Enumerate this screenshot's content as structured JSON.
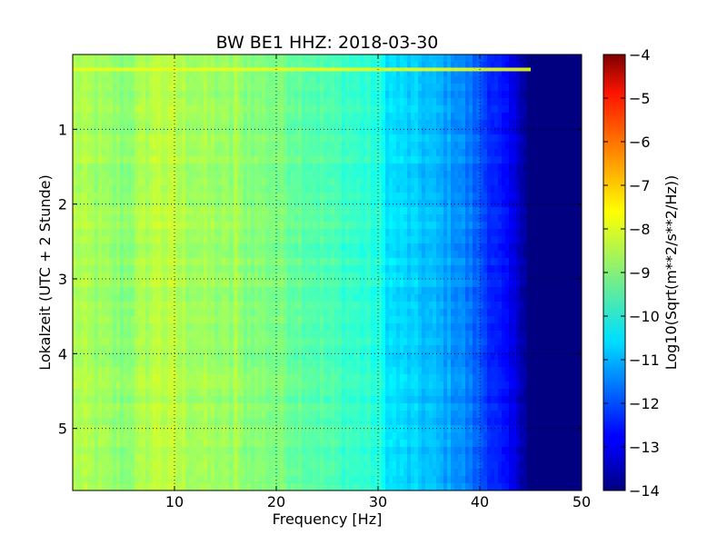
{
  "chart_data": {
    "type": "heatmap",
    "title": "BW BE1 HHZ: 2018-03-30",
    "xlabel": "Frequency [Hz]",
    "ylabel": "Lokalzeit (UTC + 2 Stunde)",
    "xlim": [
      0,
      50
    ],
    "ylim": [
      0,
      5.83
    ],
    "y_inverted": true,
    "x_ticks": [
      10,
      20,
      30,
      40,
      50
    ],
    "x_tick_labels": [
      "10",
      "20",
      "30",
      "40",
      "50"
    ],
    "y_ticks": [
      1,
      2,
      3,
      4,
      5
    ],
    "y_tick_labels": [
      "1",
      "2",
      "3",
      "4",
      "5"
    ],
    "grid": true,
    "colormap": "jet",
    "colorbar": {
      "label": "Log10(Sqrt(m**2/s**2/Hz))",
      "range": [
        -14,
        -4
      ],
      "ticks": [
        -4,
        -5,
        -6,
        -7,
        -8,
        -9,
        -10,
        -11,
        -12,
        -13,
        -14
      ],
      "tick_labels": [
        "−4",
        "−5",
        "−6",
        "−7",
        "−8",
        "−9",
        "−10",
        "−11",
        "−12",
        "−13",
        "−14"
      ]
    },
    "spectrum_profile": {
      "frequency_hz": [
        0,
        5,
        8,
        10,
        15,
        20,
        25,
        30,
        31,
        35,
        38,
        40,
        42,
        44,
        45,
        50
      ],
      "log10_amplitude": [
        -8.5,
        -8.9,
        -8.4,
        -8.5,
        -8.8,
        -9.0,
        -9.5,
        -9.9,
        -10.5,
        -10.9,
        -11.3,
        -11.9,
        -12.6,
        -13.3,
        -13.9,
        -14.0
      ]
    },
    "features": [
      {
        "type": "horizontal_band",
        "time_h": 0.2,
        "freq_range_hz": [
          0,
          45
        ],
        "log10_amplitude": -8.0
      },
      {
        "type": "vertical_band",
        "freq_hz": 8.5,
        "log10_amplitude": -8.0
      },
      {
        "type": "vertical_band",
        "freq_hz": 10,
        "log10_amplitude": -8.0
      },
      {
        "type": "vertical_band",
        "freq_hz": 16,
        "log10_amplitude": -8.0
      }
    ]
  }
}
